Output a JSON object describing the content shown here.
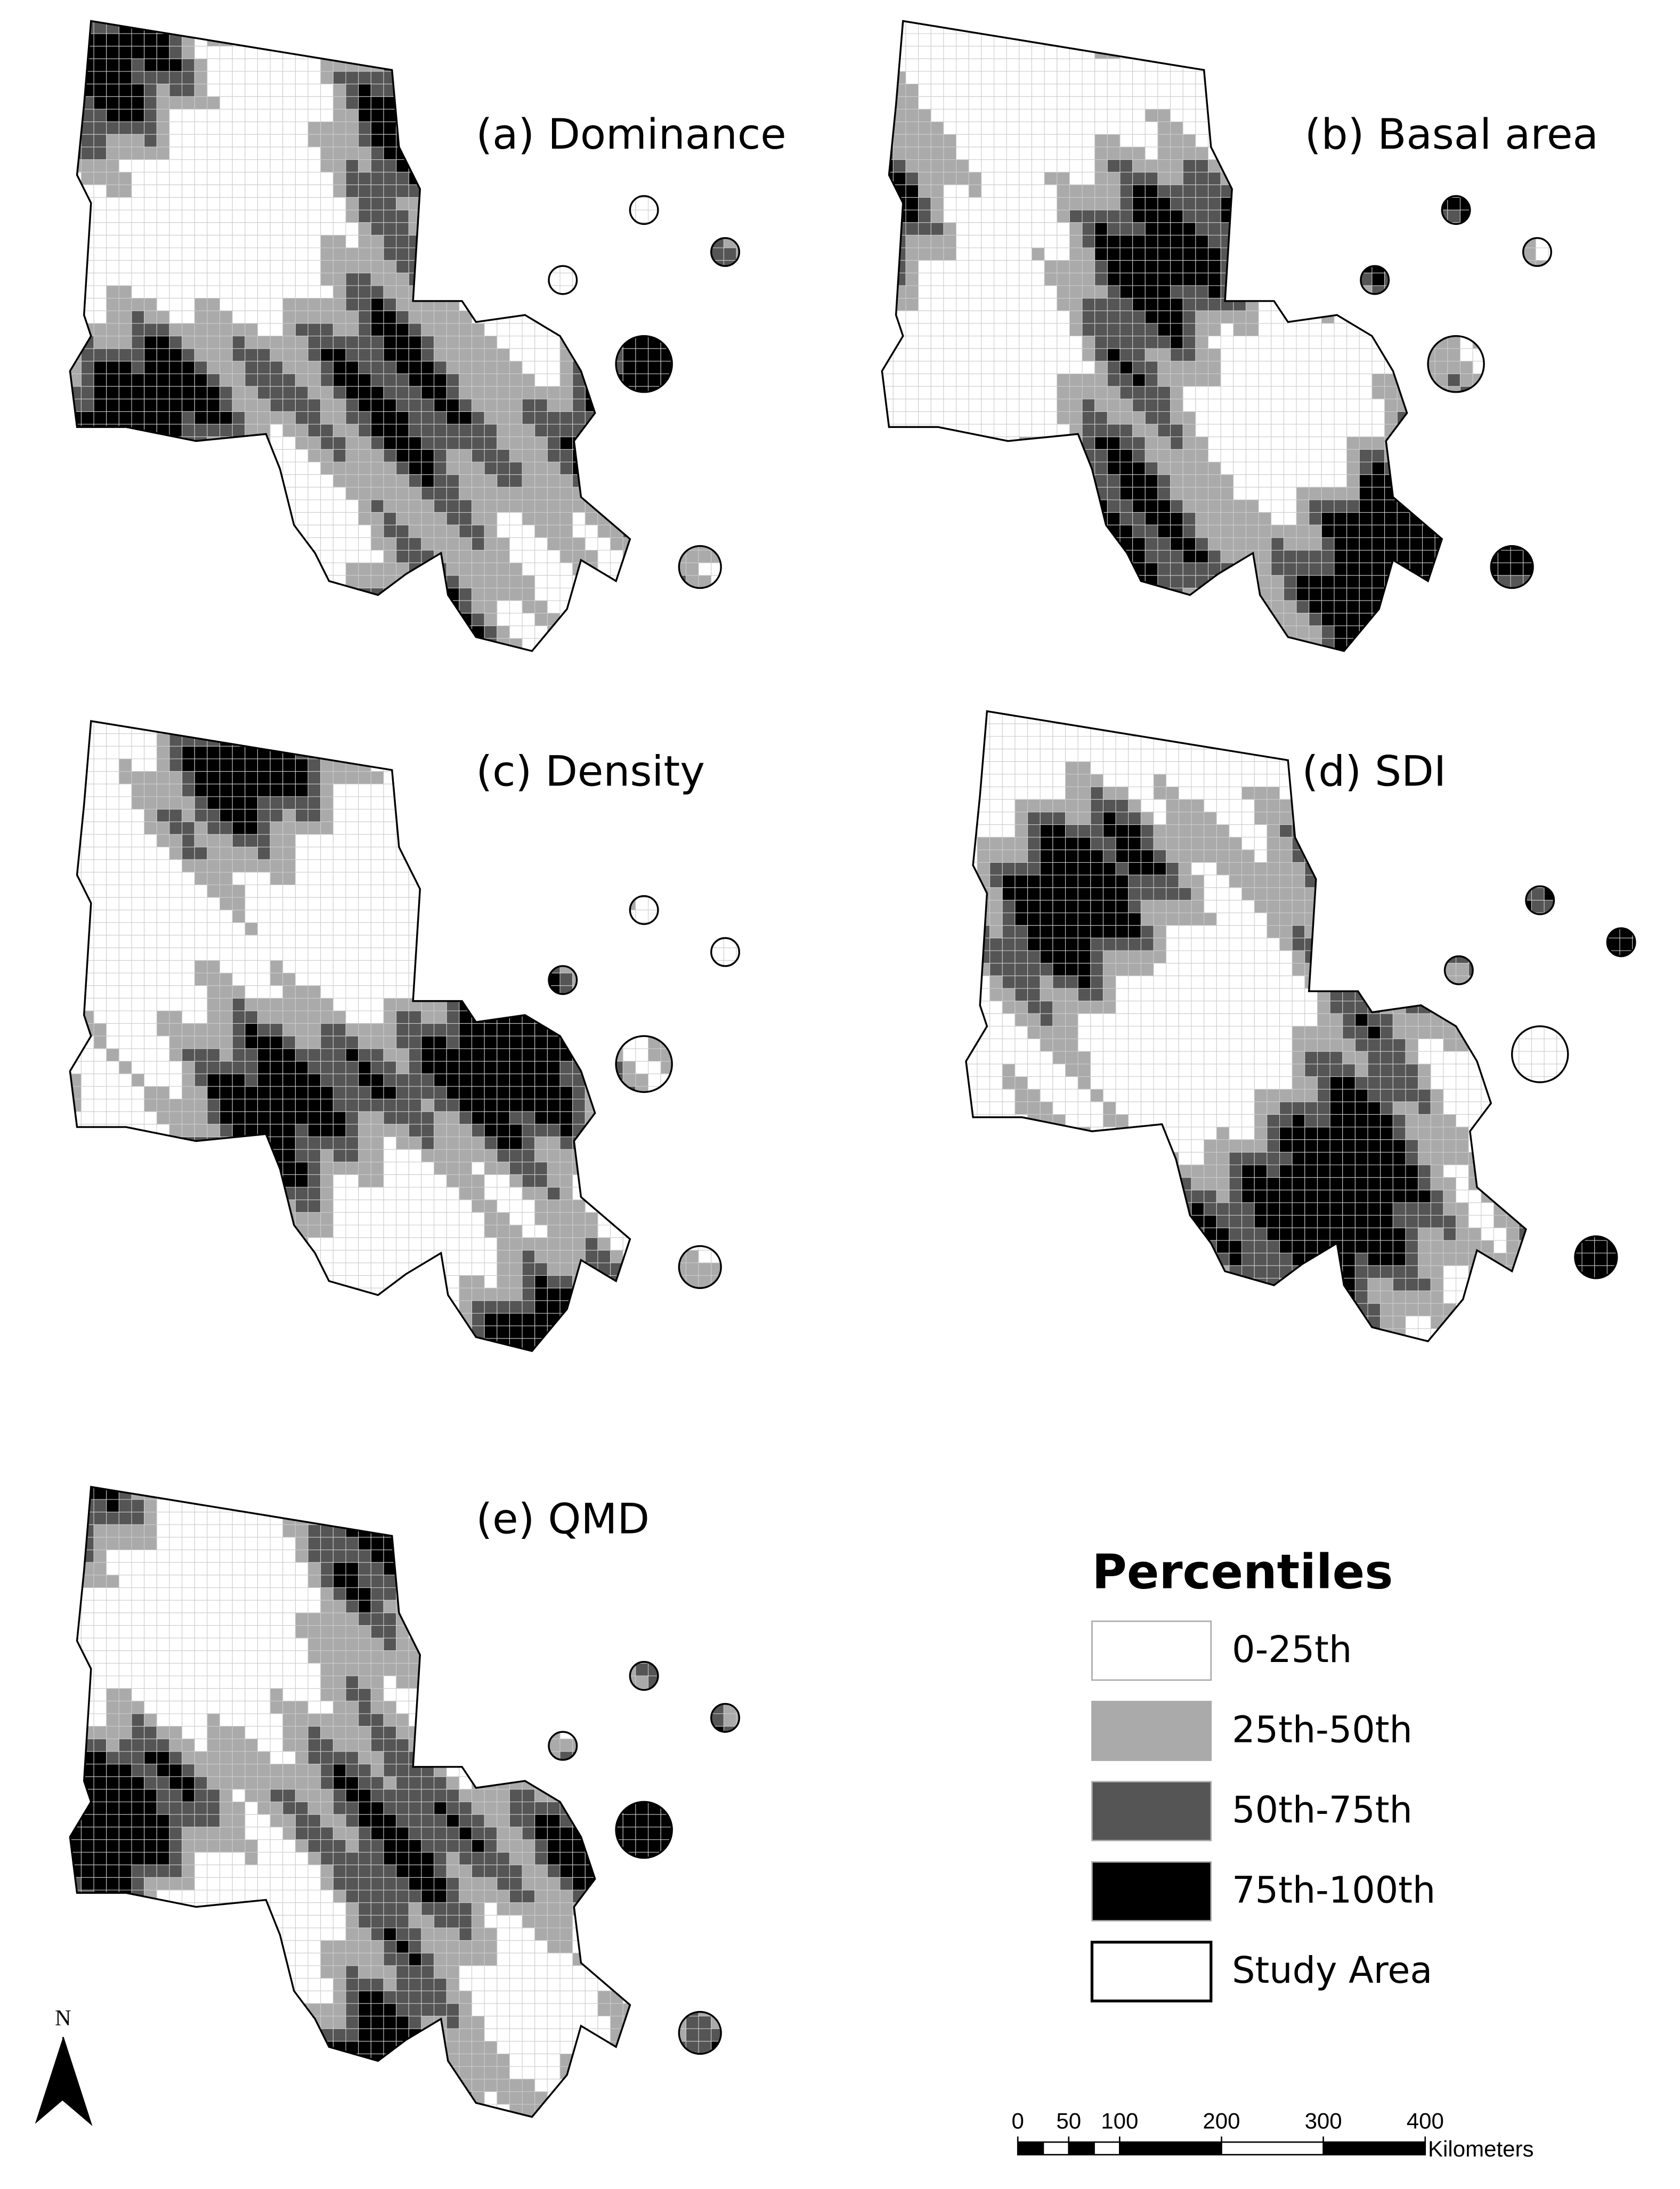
{
  "panels": [
    {
      "label": "(a) Dominance"
    },
    {
      "label": "(b) Basal area"
    },
    {
      "label": "(c) Density"
    },
    {
      "label": "(d) SDI"
    },
    {
      "label": "(e) QMD"
    }
  ],
  "legend": {
    "title": "Percentiles",
    "items": [
      {
        "label": "0-25th",
        "color": "#ffffff"
      },
      {
        "label": "25th-50th",
        "color": "#aaaaaa"
      },
      {
        "label": "50th-75th",
        "color": "#555555"
      },
      {
        "label": "75th-100th",
        "color": "#000000"
      },
      {
        "label": "Study Area"
      }
    ]
  },
  "north_arrow": {
    "label": "N"
  },
  "scale_bar": {
    "ticks": [
      0,
      50,
      100,
      200,
      300,
      400
    ],
    "unit": "Kilometers"
  }
}
